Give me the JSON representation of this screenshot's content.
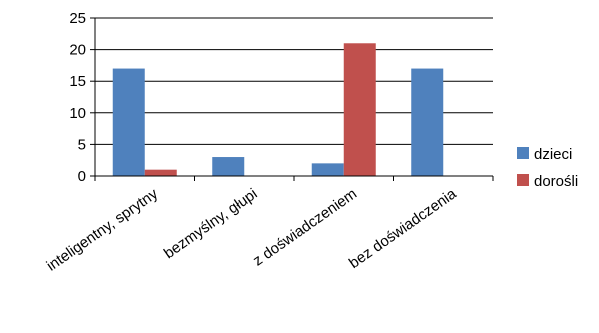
{
  "chart_data": {
    "type": "bar",
    "categories": [
      "inteligentny, sprytny",
      "bezmyślny, głupi",
      "z doświadczeniem",
      "bez  doświadczenia"
    ],
    "series": [
      {
        "name": "dzieci",
        "values": [
          17,
          3,
          2,
          17
        ],
        "color": "#4F81BD"
      },
      {
        "name": "dorośli",
        "values": [
          1,
          0,
          21,
          0
        ],
        "color": "#C0504D"
      }
    ],
    "yticks": [
      0,
      5,
      10,
      15,
      20,
      25
    ],
    "ylim": [
      0,
      25
    ],
    "grid": true,
    "legend": "right"
  }
}
